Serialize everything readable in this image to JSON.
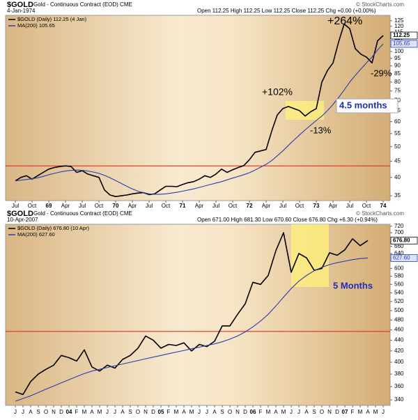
{
  "chart_data": [
    {
      "type": "line",
      "title": "$GOLD",
      "subtitle": "Gold - Continuous Contract (EOD) CME",
      "date": "4-Jan-1974",
      "quote": "Open 112.25  High 112.25  Low 112.25  Close 112.25  Chg +0.00 (+0.00%)",
      "credit": "© StockCharts.com",
      "log": true,
      "ylim": [
        33.8,
        130
      ],
      "yticks": [
        35,
        40,
        45,
        50,
        55,
        60,
        65,
        70,
        75,
        80,
        85,
        90,
        95,
        100,
        110,
        115,
        120,
        125
      ],
      "hline": {
        "value": 43.5,
        "color": "#e03020"
      },
      "categories": [
        "Jul",
        null,
        null,
        "Oct",
        null,
        null,
        "69",
        null,
        null,
        "Apr",
        null,
        null,
        "Jul",
        null,
        null,
        "Oct",
        null,
        null,
        "70",
        null,
        null,
        "Apr",
        null,
        null,
        "Jul",
        null,
        null,
        "Oct",
        null,
        null,
        "71",
        null,
        null,
        "Apr",
        null,
        null,
        "Jul",
        null,
        null,
        "Oct",
        null,
        null,
        "72",
        null,
        null,
        "Apr",
        null,
        null,
        "Jul",
        null,
        null,
        "Oct",
        null,
        null,
        "73",
        null,
        null,
        "Apr",
        null,
        null,
        "Jul",
        null,
        null,
        "Oct",
        null,
        null,
        "74"
      ],
      "series": [
        {
          "name": "$GOLD (Daily) 112.25 (4 Jan)",
          "color": "#000000",
          "last_label": "112.25",
          "values": [
            39,
            40,
            40.5,
            39.5,
            40.5,
            41.5,
            42.5,
            43,
            43.3,
            43.5,
            43.3,
            41.5,
            42,
            41,
            40.5,
            40,
            36.5,
            35.2,
            34.8,
            35,
            35.2,
            35.5,
            35.7,
            35.8,
            35.3,
            35.5,
            36.5,
            37.5,
            37.5,
            37.4,
            38,
            38.5,
            38.8,
            39.5,
            40.5,
            40,
            41,
            42.5,
            41.5,
            42.3,
            43,
            43.6,
            45.5,
            48,
            48.5,
            49,
            56,
            63,
            66,
            67,
            66,
            65,
            62.5,
            64.5,
            66,
            80,
            87,
            92,
            107,
            122,
            118,
            102,
            98,
            96,
            92,
            108,
            112.25
          ]
        },
        {
          "name": "MA(200) 105.65",
          "color": "#2a3cb0",
          "last_label": "105.65",
          "values": [
            39,
            39.2,
            39.4,
            39.6,
            39.9,
            40.3,
            40.8,
            41.2,
            41.6,
            41.9,
            42.1,
            42.2,
            42.1,
            41.9,
            41.6,
            41.2,
            40.6,
            39.9,
            39.1,
            38.3,
            37.5,
            36.8,
            36.2,
            35.8,
            35.5,
            35.4,
            35.4,
            35.5,
            35.7,
            35.9,
            36.2,
            36.5,
            36.8,
            37.2,
            37.6,
            38,
            38.4,
            38.8,
            39.3,
            39.8,
            40.3,
            40.8,
            41.4,
            42.2,
            43.1,
            44,
            45.2,
            46.8,
            48.5,
            50.5,
            52.5,
            54.5,
            56.5,
            58.5,
            60.5,
            62.5,
            65,
            68,
            71.5,
            75.5,
            80,
            84,
            88,
            92,
            96,
            101,
            105.65
          ]
        }
      ],
      "annotations": [
        "+264%",
        "+102%",
        "-13%",
        "-29%",
        "4.5 months"
      ]
    },
    {
      "type": "line",
      "title": "$GOLD",
      "subtitle": "Gold - Continuous Contract (EOD) CME",
      "date": "10-Apr-2007",
      "quote": "Open 671.00  High 681.30  Low 670.60  Close 676.80  Chg +6.30 (+0.94%)",
      "credit": "© StockCharts.com",
      "log": true,
      "ylim": [
        332,
        726
      ],
      "yticks": [
        340,
        360,
        380,
        400,
        420,
        440,
        460,
        480,
        500,
        520,
        540,
        560,
        580,
        600,
        640,
        660,
        700,
        720
      ],
      "hline": {
        "value": 457,
        "color": "#e03020"
      },
      "categories": [
        "J",
        "J",
        "A",
        "S",
        "O",
        "N",
        "D",
        "04",
        "F",
        "M",
        "A",
        "M",
        "J",
        "J",
        "A",
        "S",
        "O",
        "N",
        "D",
        "05",
        "F",
        "M",
        "A",
        "M",
        "J",
        "J",
        "A",
        "S",
        "O",
        "N",
        "D",
        "06",
        "F",
        "M",
        "A",
        "M",
        "J",
        "J",
        "A",
        "S",
        "O",
        "N",
        "D",
        "07",
        "F",
        "M",
        "A",
        "M",
        "J"
      ],
      "series": [
        {
          "name": "$GOLD (Daily) 676.80 (10 Apr)",
          "color": "#000000",
          "last_label": "676.80",
          "values": [
            352,
            348,
            368,
            380,
            388,
            395,
            412,
            408,
            402,
            422,
            392,
            385,
            395,
            390,
            405,
            412,
            425,
            448,
            440,
            425,
            432,
            430,
            435,
            420,
            432,
            428,
            438,
            468,
            468,
            492,
            515,
            565,
            560,
            582,
            648,
            700,
            590,
            640,
            628,
            595,
            600,
            642,
            635,
            650,
            682,
            662,
            676.8,
            null,
            null
          ]
        },
        {
          "name": "MA(200) 627.60",
          "color": "#2a3cb0",
          "last_label": "627.60",
          "values": [
            338,
            342,
            346,
            351,
            356,
            361,
            366,
            371,
            376,
            381,
            385,
            388,
            391,
            394,
            397,
            400,
            403,
            406,
            409,
            412,
            415,
            418,
            421,
            424,
            427,
            430,
            433,
            437,
            442,
            448,
            456,
            466,
            478,
            492,
            510,
            530,
            550,
            568,
            582,
            594,
            603,
            610,
            615,
            619,
            623,
            626,
            627.6,
            null,
            null
          ]
        }
      ],
      "annotations": [
        "5 Months"
      ]
    }
  ]
}
